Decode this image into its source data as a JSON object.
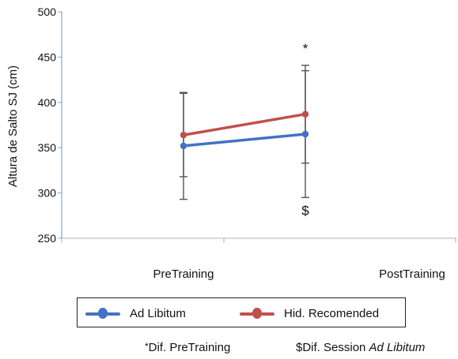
{
  "chart_data": {
    "type": "line",
    "title": "",
    "ylabel": "Altura de Salto SJ (cm)",
    "xlabel": "",
    "ylim": [
      250,
      500
    ],
    "yticks": [
      250,
      300,
      350,
      400,
      450,
      500
    ],
    "categories": [
      "PreTraining",
      "PostTraining"
    ],
    "series": [
      {
        "name": "Ad Libitum",
        "color": "#4472C4",
        "values": [
          352,
          365
        ],
        "error": [
          59,
          70
        ]
      },
      {
        "name": "Hid. Recomended",
        "color": "#C0504D",
        "values": [
          364,
          387
        ],
        "error": [
          46,
          54
        ]
      }
    ],
    "annotations": [
      {
        "text": "*",
        "category": "PostTraining",
        "y": 460
      },
      {
        "text": "$",
        "category": "PostTraining",
        "y": 281
      }
    ],
    "legend": "bottom",
    "grid": false
  },
  "footnotes": {
    "dif_pre_symbol": "*",
    "dif_pre_text": "Dif. PreTraining",
    "dif_session_prefix": "$Dif. Session ",
    "dif_session_italic": "Ad Libitum"
  }
}
